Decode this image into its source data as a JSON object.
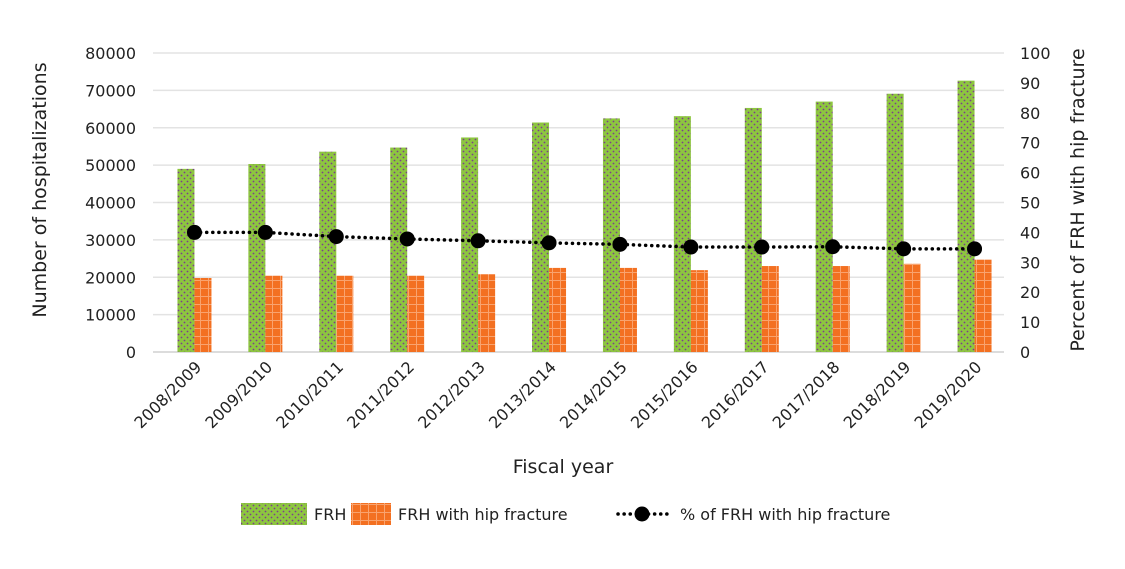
{
  "chart_data": {
    "type": "bar",
    "title": "",
    "xlabel": "Fiscal year",
    "ylabel": "Number of hospitalizations",
    "y2label": "Percent of FRH with hip fracture",
    "ylim": [
      0,
      80000
    ],
    "y2lim": [
      0,
      100
    ],
    "yticks": [
      "0",
      "10000",
      "20000",
      "30000",
      "40000",
      "50000",
      "60000",
      "70000",
      "80000"
    ],
    "y2ticks": [
      "0",
      "10",
      "20",
      "30",
      "40",
      "50",
      "60",
      "70",
      "80",
      "90",
      "100"
    ],
    "grid": true,
    "legend_position": "bottom",
    "categories": [
      "2008/2009",
      "2009/2010",
      "2010/2011",
      "2011/2012",
      "2012/2013",
      "2013/2014",
      "2014/2015",
      "2015/2016",
      "2016/2017",
      "2017/2018",
      "2018/2019",
      "2019/2020"
    ],
    "series": [
      {
        "name": "FRH",
        "type": "bar",
        "axis": "left",
        "color": "#8dc63f",
        "dot_color": "#7b3f8c",
        "values": [
          49000,
          50300,
          53600,
          54700,
          57400,
          61400,
          62500,
          63100,
          65300,
          67000,
          69100,
          72600
        ]
      },
      {
        "name": "FRH with hip fracture",
        "type": "bar",
        "axis": "left",
        "color": "#f37021",
        "values": [
          19800,
          20400,
          20400,
          20400,
          20800,
          22500,
          22500,
          21900,
          23000,
          23000,
          23600,
          24700
        ]
      },
      {
        "name": "% of FRH with hip fracture",
        "type": "line",
        "axis": "right",
        "color": "#000000",
        "style": "dotted",
        "values": [
          40.0,
          40.0,
          38.6,
          37.8,
          37.2,
          36.5,
          36.0,
          35.1,
          35.1,
          35.2,
          34.5,
          34.5
        ]
      }
    ]
  }
}
